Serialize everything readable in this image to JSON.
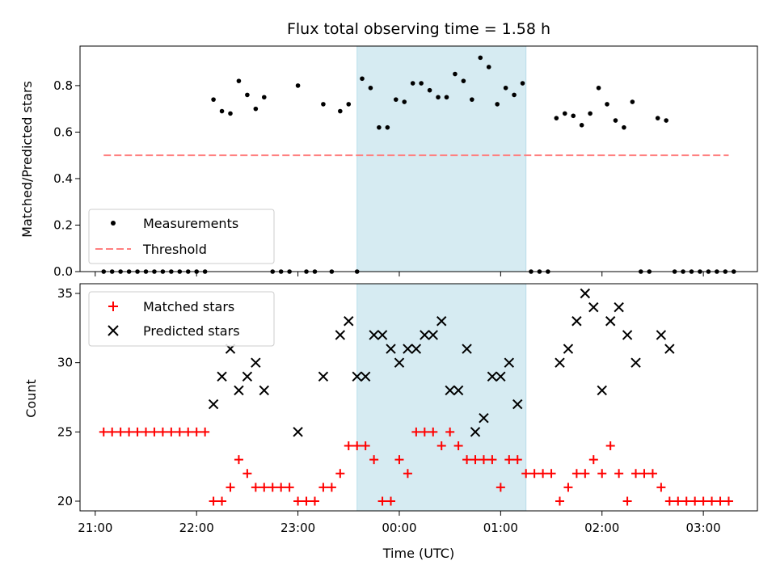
{
  "chart_data": [
    {
      "type": "scatter",
      "title": "Flux total observing time = 1.58 h",
      "xlabel": "",
      "ylabel": "Matched/Predicted stars",
      "ylim": [
        0,
        0.97
      ],
      "xlim": [
        "20:51",
        "03:32"
      ],
      "yticks": [
        "0.0",
        "0.2",
        "0.4",
        "0.6",
        "0.8"
      ],
      "legend_position": "lower-left",
      "highlight_span": {
        "start": "23:35",
        "end": "01:15",
        "color": "#add8e6"
      },
      "series": [
        {
          "name": "Measurements",
          "color": "#000000",
          "marker": "dot",
          "points": [
            [
              "21:05",
              0
            ],
            [
              "21:10",
              0
            ],
            [
              "21:15",
              0
            ],
            [
              "21:20",
              0
            ],
            [
              "21:25",
              0
            ],
            [
              "21:30",
              0
            ],
            [
              "21:35",
              0
            ],
            [
              "21:40",
              0
            ],
            [
              "21:45",
              0
            ],
            [
              "21:50",
              0
            ],
            [
              "21:55",
              0
            ],
            [
              "22:00",
              0
            ],
            [
              "22:05",
              0
            ],
            [
              "22:10",
              0.74
            ],
            [
              "22:15",
              0.69
            ],
            [
              "22:20",
              0.68
            ],
            [
              "22:25",
              0.82
            ],
            [
              "22:30",
              0.76
            ],
            [
              "22:35",
              0.7
            ],
            [
              "22:40",
              0.75
            ],
            [
              "22:45",
              0
            ],
            [
              "22:50",
              0
            ],
            [
              "22:55",
              0
            ],
            [
              "23:00",
              0.8
            ],
            [
              "23:05",
              0
            ],
            [
              "23:10",
              0
            ],
            [
              "23:15",
              0.72
            ],
            [
              "23:20",
              0
            ],
            [
              "23:25",
              0.69
            ],
            [
              "23:30",
              0.72
            ],
            [
              "23:35",
              0
            ],
            [
              "23:38",
              0.83
            ],
            [
              "23:43",
              0.79
            ],
            [
              "23:48",
              0.62
            ],
            [
              "23:53",
              0.62
            ],
            [
              "23:58",
              0.74
            ],
            [
              "00:03",
              0.73
            ],
            [
              "00:08",
              0.81
            ],
            [
              "00:13",
              0.81
            ],
            [
              "00:18",
              0.78
            ],
            [
              "00:23",
              0.75
            ],
            [
              "00:28",
              0.75
            ],
            [
              "00:33",
              0.85
            ],
            [
              "00:38",
              0.82
            ],
            [
              "00:43",
              0.74
            ],
            [
              "00:48",
              0.92
            ],
            [
              "00:53",
              0.88
            ],
            [
              "00:58",
              0.72
            ],
            [
              "01:03",
              0.79
            ],
            [
              "01:08",
              0.76
            ],
            [
              "01:13",
              0.81
            ],
            [
              "01:18",
              0
            ],
            [
              "01:23",
              0
            ],
            [
              "01:28",
              0
            ],
            [
              "01:33",
              0.66
            ],
            [
              "01:38",
              0.68
            ],
            [
              "01:43",
              0.67
            ],
            [
              "01:48",
              0.63
            ],
            [
              "01:53",
              0.68
            ],
            [
              "01:58",
              0.79
            ],
            [
              "02:03",
              0.72
            ],
            [
              "02:08",
              0.65
            ],
            [
              "02:13",
              0.62
            ],
            [
              "02:18",
              0.73
            ],
            [
              "02:23",
              0
            ],
            [
              "02:28",
              0
            ],
            [
              "02:33",
              0.66
            ],
            [
              "02:38",
              0.65
            ],
            [
              "02:43",
              0
            ],
            [
              "02:48",
              0
            ],
            [
              "02:53",
              0
            ],
            [
              "02:58",
              0
            ],
            [
              "03:03",
              0
            ],
            [
              "03:08",
              0
            ],
            [
              "03:13",
              0
            ],
            [
              "03:18",
              0
            ]
          ]
        },
        {
          "name": "Threshold",
          "color": "#ff7f7f",
          "style": "dashed",
          "points": [
            [
              "21:05",
              0.5
            ],
            [
              "03:15",
              0.5
            ]
          ]
        }
      ]
    },
    {
      "type": "scatter",
      "title": "",
      "xlabel": "Time (UTC)",
      "ylabel": "Count",
      "ylim": [
        19.3,
        35.7
      ],
      "yticks": [
        "20",
        "25",
        "30",
        "35"
      ],
      "xticks": [
        "21:00",
        "22:00",
        "23:00",
        "00:00",
        "01:00",
        "02:00",
        "03:00"
      ],
      "legend_position": "upper-left",
      "series": [
        {
          "name": "Matched stars",
          "color": "#ff0000",
          "marker": "plus",
          "points": [
            [
              "21:05",
              25
            ],
            [
              "21:10",
              25
            ],
            [
              "21:15",
              25
            ],
            [
              "21:20",
              25
            ],
            [
              "21:25",
              25
            ],
            [
              "21:30",
              25
            ],
            [
              "21:35",
              25
            ],
            [
              "21:40",
              25
            ],
            [
              "21:45",
              25
            ],
            [
              "21:50",
              25
            ],
            [
              "21:55",
              25
            ],
            [
              "22:00",
              25
            ],
            [
              "22:05",
              25
            ],
            [
              "22:10",
              20
            ],
            [
              "22:15",
              20
            ],
            [
              "22:20",
              21
            ],
            [
              "22:25",
              23
            ],
            [
              "22:30",
              22
            ],
            [
              "22:35",
              21
            ],
            [
              "22:40",
              21
            ],
            [
              "22:45",
              21
            ],
            [
              "22:50",
              21
            ],
            [
              "22:55",
              21
            ],
            [
              "23:00",
              20
            ],
            [
              "23:05",
              20
            ],
            [
              "23:10",
              20
            ],
            [
              "23:15",
              21
            ],
            [
              "23:20",
              21
            ],
            [
              "23:25",
              22
            ],
            [
              "23:30",
              24
            ],
            [
              "23:35",
              24
            ],
            [
              "23:40",
              24
            ],
            [
              "23:45",
              23
            ],
            [
              "23:50",
              20
            ],
            [
              "23:55",
              20
            ],
            [
              "24:00",
              23
            ],
            [
              "24:05",
              22
            ],
            [
              "24:10",
              25
            ],
            [
              "24:15",
              25
            ],
            [
              "24:20",
              25
            ],
            [
              "24:25",
              24
            ],
            [
              "24:30",
              25
            ],
            [
              "24:35",
              24
            ],
            [
              "24:40",
              23
            ],
            [
              "24:45",
              23
            ],
            [
              "24:50",
              23
            ],
            [
              "24:55",
              23
            ],
            [
              "25:00",
              21
            ],
            [
              "25:05",
              23
            ],
            [
              "25:10",
              23
            ],
            [
              "25:15",
              22
            ],
            [
              "25:20",
              22
            ],
            [
              "25:25",
              22
            ],
            [
              "25:30",
              22
            ],
            [
              "25:35",
              20
            ],
            [
              "25:40",
              21
            ],
            [
              "25:45",
              22
            ],
            [
              "25:50",
              22
            ],
            [
              "25:55",
              23
            ],
            [
              "26:00",
              22
            ],
            [
              "26:05",
              24
            ],
            [
              "26:10",
              22
            ],
            [
              "26:15",
              20
            ],
            [
              "26:20",
              22
            ],
            [
              "26:25",
              22
            ],
            [
              "26:30",
              22
            ],
            [
              "26:35",
              21
            ],
            [
              "26:40",
              20
            ],
            [
              "26:45",
              20
            ],
            [
              "26:50",
              20
            ],
            [
              "26:55",
              20
            ],
            [
              "27:00",
              20
            ],
            [
              "27:05",
              20
            ],
            [
              "27:10",
              20
            ],
            [
              "27:15",
              20
            ]
          ]
        },
        {
          "name": "Predicted stars",
          "color": "#000000",
          "marker": "x",
          "points": [
            [
              "22:10",
              27
            ],
            [
              "22:15",
              29
            ],
            [
              "22:20",
              31
            ],
            [
              "22:25",
              28
            ],
            [
              "22:30",
              29
            ],
            [
              "22:35",
              30
            ],
            [
              "22:40",
              28
            ],
            [
              "23:00",
              25
            ],
            [
              "23:15",
              29
            ],
            [
              "23:25",
              32
            ],
            [
              "23:30",
              33
            ],
            [
              "23:35",
              29
            ],
            [
              "23:40",
              29
            ],
            [
              "23:45",
              32
            ],
            [
              "23:50",
              32
            ],
            [
              "23:55",
              31
            ],
            [
              "24:00",
              30
            ],
            [
              "24:05",
              31
            ],
            [
              "24:10",
              31
            ],
            [
              "24:15",
              32
            ],
            [
              "24:20",
              32
            ],
            [
              "24:25",
              33
            ],
            [
              "24:30",
              28
            ],
            [
              "24:35",
              28
            ],
            [
              "24:40",
              31
            ],
            [
              "24:45",
              25
            ],
            [
              "24:50",
              26
            ],
            [
              "24:55",
              29
            ],
            [
              "25:00",
              29
            ],
            [
              "25:05",
              30
            ],
            [
              "25:10",
              27
            ],
            [
              "25:35",
              30
            ],
            [
              "25:40",
              31
            ],
            [
              "25:45",
              33
            ],
            [
              "25:50",
              35
            ],
            [
              "25:55",
              34
            ],
            [
              "26:00",
              28
            ],
            [
              "26:05",
              33
            ],
            [
              "26:10",
              34
            ],
            [
              "26:15",
              32
            ],
            [
              "26:20",
              30
            ],
            [
              "26:35",
              32
            ],
            [
              "26:40",
              31
            ]
          ]
        }
      ]
    }
  ]
}
